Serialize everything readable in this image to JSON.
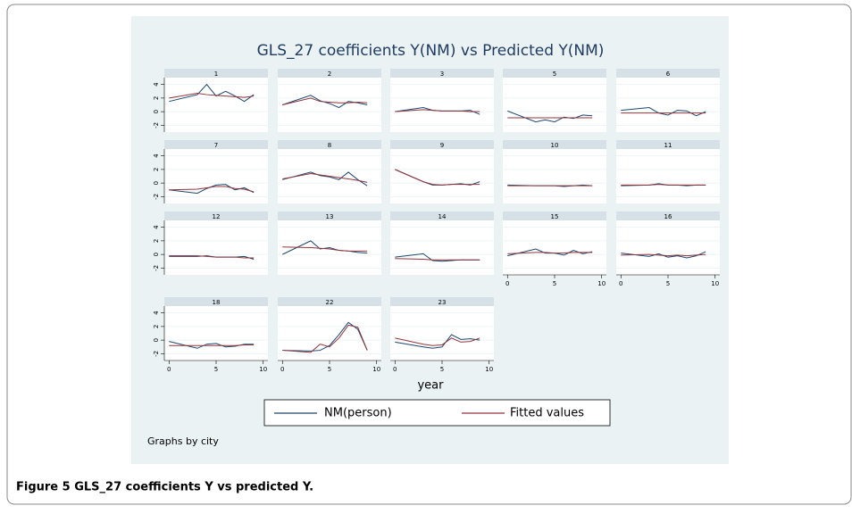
{
  "chart_data": {
    "type": "line",
    "title": "GLS_27 coefficients Y(NM) vs Predicted Y(NM)",
    "x_label": "year",
    "note": "Graphs by city",
    "series": [
      {
        "name": "NM(person)",
        "color": "#1a476f"
      },
      {
        "name": "Fitted values",
        "color": "#90353b"
      }
    ],
    "x": [
      0,
      3,
      4,
      5,
      6,
      7,
      8,
      9
    ],
    "xlim": [
      -0.5,
      10.5
    ],
    "xticks": [
      0,
      5,
      10
    ],
    "ylim": [
      -3,
      5
    ],
    "yticks": [
      -2,
      0,
      2,
      4
    ],
    "panels": [
      {
        "title": "1",
        "values": [
          [
            1.5,
            2.5,
            4,
            2.3,
            3,
            2.3,
            1.5,
            2.5
          ],
          [
            2,
            2.7,
            2.5,
            2.4,
            2.3,
            2.2,
            2.1,
            2.3
          ]
        ]
      },
      {
        "title": "2",
        "values": [
          [
            1,
            2.4,
            1.6,
            1.2,
            0.6,
            1.5,
            1.3,
            1.0
          ],
          [
            1,
            2.0,
            1.5,
            1.4,
            1.3,
            1.3,
            1.4,
            1.3
          ]
        ]
      },
      {
        "title": "3",
        "values": [
          [
            0,
            0.6,
            0.2,
            0.1,
            0.1,
            0.1,
            0.2,
            -0.4
          ],
          [
            0,
            0.3,
            0.2,
            0.1,
            0.1,
            0.1,
            0,
            0
          ]
        ]
      },
      {
        "title": "5",
        "values": [
          [
            0.1,
            -1.5,
            -1.2,
            -1.5,
            -0.8,
            -1.0,
            -0.5,
            -0.6
          ],
          [
            -0.9,
            -0.9,
            -0.9,
            -0.9,
            -0.9,
            -0.9,
            -0.9,
            -0.9
          ]
        ]
      },
      {
        "title": "6",
        "values": [
          [
            0.2,
            0.6,
            -0.2,
            -0.5,
            0.2,
            0.1,
            -0.6,
            0
          ],
          [
            -0.2,
            -0.2,
            -0.2,
            -0.2,
            -0.2,
            -0.2,
            -0.2,
            -0.2
          ]
        ]
      },
      {
        "title": "7",
        "values": [
          [
            -1,
            -1.5,
            -0.8,
            -0.3,
            -0.2,
            -1.0,
            -0.7,
            -1.4
          ],
          [
            -1,
            -0.9,
            -0.7,
            -0.5,
            -0.5,
            -0.8,
            -0.9,
            -1.3
          ]
        ]
      },
      {
        "title": "8",
        "values": [
          [
            0.5,
            1.6,
            1.1,
            0.9,
            0.5,
            1.6,
            0.5,
            -0.4
          ],
          [
            0.6,
            1.4,
            1.2,
            1.0,
            0.8,
            0.6,
            0.4,
            0.1
          ]
        ]
      },
      {
        "title": "9",
        "values": [
          [
            2,
            0.2,
            -0.3,
            -0.3,
            -0.2,
            -0.1,
            -0.3,
            0.2
          ],
          [
            2,
            0.2,
            -0.2,
            -0.3,
            -0.2,
            -0.2,
            -0.2,
            -0.2
          ]
        ]
      },
      {
        "title": "10",
        "values": [
          [
            -0.3,
            -0.4,
            -0.4,
            -0.4,
            -0.5,
            -0.4,
            -0.3,
            -0.4
          ],
          [
            -0.4,
            -0.4,
            -0.4,
            -0.4,
            -0.4,
            -0.4,
            -0.4,
            -0.4
          ]
        ]
      },
      {
        "title": "11",
        "values": [
          [
            -0.4,
            -0.3,
            -0.1,
            -0.3,
            -0.3,
            -0.4,
            -0.3,
            -0.3
          ],
          [
            -0.3,
            -0.3,
            -0.2,
            -0.3,
            -0.3,
            -0.3,
            -0.3,
            -0.3
          ]
        ]
      },
      {
        "title": "12",
        "values": [
          [
            -0.3,
            -0.3,
            -0.2,
            -0.4,
            -0.4,
            -0.4,
            -0.3,
            -0.7
          ],
          [
            -0.2,
            -0.2,
            -0.3,
            -0.4,
            -0.4,
            -0.4,
            -0.5,
            -0.5
          ]
        ]
      },
      {
        "title": "13",
        "values": [
          [
            0,
            2,
            0.8,
            1,
            0.6,
            0.5,
            0.3,
            0.2
          ],
          [
            1.1,
            1.0,
            0.9,
            0.8,
            0.6,
            0.5,
            0.5,
            0.5
          ]
        ]
      },
      {
        "title": "14",
        "values": [
          [
            -0.4,
            0.1,
            -0.9,
            -1.0,
            -0.9,
            -0.8,
            -0.8,
            -0.8
          ],
          [
            -0.6,
            -0.7,
            -0.8,
            -0.8,
            -0.8,
            -0.8,
            -0.8,
            -0.8
          ]
        ]
      },
      {
        "title": "15",
        "values": [
          [
            -0.2,
            0.8,
            0.2,
            0.2,
            -0.1,
            0.6,
            0.1,
            0.4
          ],
          [
            0.1,
            0.3,
            0.3,
            0.2,
            0.2,
            0.3,
            0.3,
            0.3
          ]
        ]
      },
      {
        "title": "16",
        "values": [
          [
            0.2,
            -0.3,
            0.1,
            -0.4,
            -0.2,
            -0.5,
            -0.2,
            0.4
          ],
          [
            -0.1,
            0,
            -0.1,
            -0.2,
            -0.1,
            -0.2,
            -0.1,
            0
          ]
        ]
      },
      {
        "title": "18",
        "values": [
          [
            -0.2,
            -1.2,
            -0.6,
            -0.5,
            -1.0,
            -0.9,
            -0.6,
            -0.6
          ],
          [
            -0.8,
            -0.8,
            -0.8,
            -0.8,
            -0.8,
            -0.8,
            -0.7,
            -0.7
          ]
        ]
      },
      {
        "title": "22",
        "values": [
          [
            -1.5,
            -1.6,
            -1.5,
            -0.8,
            0.8,
            2.6,
            1.6,
            -1.5
          ],
          [
            -1.5,
            -1.8,
            -0.6,
            -1.0,
            0.3,
            2.2,
            1.9,
            -1.5
          ]
        ]
      },
      {
        "title": "23",
        "values": [
          [
            -0.3,
            -1.0,
            -1.2,
            -1.0,
            0.8,
            0.1,
            0.2,
            0.0
          ],
          [
            0.3,
            -0.6,
            -0.8,
            -0.7,
            0.3,
            -0.3,
            -0.2,
            0.3
          ]
        ]
      }
    ]
  },
  "caption": "Figure 5 GLS_27 coefficients Y vs predicted Y."
}
